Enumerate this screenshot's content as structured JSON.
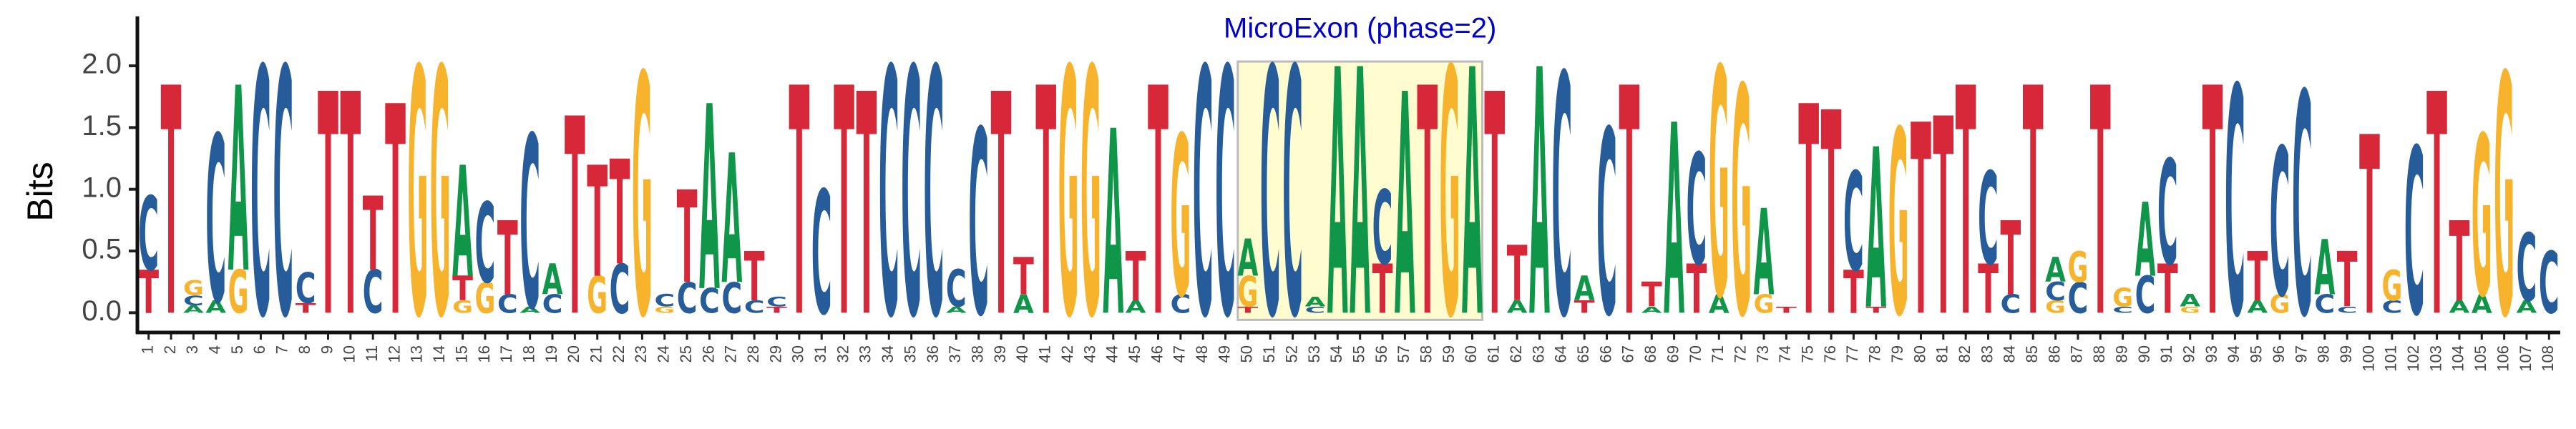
{
  "chart_data": {
    "type": "logo",
    "ylabel": "Bits",
    "ylim": [
      -0.16,
      2.4
    ],
    "yticks": [
      {
        "value": 0,
        "label": "0.0"
      },
      0.5,
      {
        "value": 1,
        "label": "1.0"
      },
      1.5,
      {
        "value": 2,
        "label": "2.0"
      }
    ],
    "xlim": [
      0.5,
      108.5
    ],
    "highlight": {
      "label": "MicroExon (phase=2)",
      "start": 50,
      "end": 60,
      "color": "#fffdd0",
      "label_color": "#0000cc"
    },
    "categories": [
      "1",
      "2",
      "3",
      "4",
      "5",
      "6",
      "7",
      "8",
      "9",
      "10",
      "11",
      "12",
      "13",
      "14",
      "15",
      "16",
      "17",
      "18",
      "19",
      "20",
      "21",
      "22",
      "23",
      "24",
      "25",
      "26",
      "27",
      "28",
      "29",
      "30",
      "31",
      "32",
      "33",
      "34",
      "35",
      "36",
      "37",
      "38",
      "39",
      "40",
      "41",
      "42",
      "43",
      "44",
      "45",
      "46",
      "47",
      "48",
      "49",
      "50",
      "51",
      "52",
      "53",
      "54",
      "55",
      "56",
      "57",
      "58",
      "59",
      "60",
      "61",
      "62",
      "63",
      "64",
      "65",
      "66",
      "67",
      "68",
      "69",
      "70",
      "71",
      "72",
      "73",
      "74",
      "75",
      "76",
      "77",
      "78",
      "79",
      "80",
      "81",
      "82",
      "83",
      "84",
      "85",
      "86",
      "87",
      "88",
      "89",
      "90",
      "91",
      "92",
      "93",
      "94",
      "95",
      "96",
      "97",
      "98",
      "99",
      "100",
      "101",
      "102",
      "103",
      "104",
      "105",
      "106",
      "107",
      "108"
    ],
    "series": [
      {
        "name": "A",
        "color": "#109648",
        "values": [
          0,
          0,
          0.06,
          0.1,
          1.5,
          0,
          0,
          0,
          0,
          0,
          0,
          0,
          0,
          0,
          0.9,
          0,
          0,
          0.05,
          0.25,
          0,
          0,
          0,
          0,
          0,
          0,
          1.5,
          1.05,
          0,
          0,
          0,
          0,
          0,
          0,
          0,
          0,
          0,
          0.05,
          0,
          0,
          0.15,
          0,
          0,
          0,
          1.5,
          0.1,
          0,
          0,
          0,
          0,
          0.3,
          0,
          0,
          0.08,
          2,
          2,
          0,
          1.8,
          0,
          0,
          2,
          0,
          0.1,
          2,
          0,
          0.2,
          0,
          0,
          0.05,
          1.55,
          0,
          0.15,
          0,
          0.7,
          0,
          0,
          0,
          0,
          1.3,
          0,
          0,
          0,
          0,
          0,
          0,
          0,
          0.2,
          0,
          0,
          0,
          0.6,
          0,
          0.1,
          0,
          0,
          0.1,
          0,
          0,
          0.45,
          0,
          0,
          0,
          0,
          0,
          0.1,
          0.15,
          0,
          0.1,
          0
        ]
      },
      {
        "name": "C",
        "color": "#255C99",
        "values": [
          0.6,
          0,
          0.08,
          1.35,
          0,
          2,
          2,
          0.25,
          0,
          0,
          0.35,
          0,
          0,
          0,
          0,
          0.65,
          0.15,
          1.4,
          0.15,
          0,
          0,
          0.4,
          0,
          0.1,
          0.25,
          0.2,
          0.25,
          0.1,
          0.08,
          0,
          1,
          0,
          0,
          2,
          2,
          2,
          0.3,
          1.5,
          0,
          0,
          0,
          0,
          0,
          0,
          0,
          0,
          0.15,
          2,
          2,
          0,
          2,
          2,
          0.05,
          0,
          0,
          0.6,
          0,
          0,
          0,
          0,
          0,
          0,
          0,
          1.95,
          0,
          1.5,
          0,
          0,
          0,
          0.9,
          0,
          0,
          0,
          0,
          0,
          0,
          0.8,
          0,
          0,
          0,
          0,
          0,
          0.75,
          0.15,
          0,
          0.15,
          0.25,
          0,
          0.05,
          0.3,
          0.85,
          0,
          0,
          1.85,
          0,
          1.2,
          1.8,
          0.15,
          0.05,
          0,
          0.1,
          1.35,
          0,
          0,
          0,
          0,
          0.55,
          0.5
        ]
      },
      {
        "name": "G",
        "color": "#F7B32B",
        "values": [
          0,
          0,
          0.12,
          0,
          0.35,
          0,
          0,
          0,
          0,
          0,
          0,
          0,
          2,
          2,
          0.1,
          0.25,
          0,
          0,
          0,
          0,
          0.3,
          0,
          1.95,
          0.05,
          0,
          0,
          0,
          0,
          0,
          0,
          0,
          0,
          0,
          0,
          0,
          0,
          0,
          0,
          0,
          0,
          0,
          2,
          2,
          0,
          0,
          0,
          1.3,
          0,
          0,
          0.25,
          0,
          0,
          0,
          0,
          0,
          0,
          0,
          0,
          2,
          0,
          0,
          0,
          0,
          0,
          0,
          0,
          0,
          0,
          0,
          0,
          1.85,
          1.85,
          0.15,
          0,
          0,
          0,
          0,
          0,
          1.5,
          0,
          0,
          0,
          0,
          0,
          0,
          0.1,
          0.25,
          0,
          0.15,
          0,
          0,
          0.05,
          0,
          0,
          0,
          0.15,
          0,
          0,
          0,
          0,
          0.25,
          0,
          0,
          0,
          1.3,
          1.95,
          0,
          0
        ]
      },
      {
        "name": "T",
        "color": "#D62839",
        "values": [
          0.35,
          1.85,
          0,
          0,
          0,
          0,
          0,
          0.08,
          1.8,
          1.8,
          0.6,
          1.7,
          0,
          0,
          0.2,
          0,
          0.6,
          0,
          0,
          1.6,
          0.9,
          0.85,
          0,
          0,
          0.75,
          0,
          0,
          0.4,
          0.05,
          1.85,
          0,
          1.85,
          1.8,
          0,
          0,
          0,
          0,
          0,
          1.8,
          0.3,
          1.85,
          0,
          0,
          0,
          0.4,
          1.85,
          0,
          0,
          0,
          0.05,
          0,
          0,
          0,
          0,
          0,
          0.4,
          0,
          1.85,
          0,
          0,
          1.8,
          0.45,
          0,
          0,
          0.1,
          0,
          1.85,
          0.2,
          0,
          0.4,
          0,
          0,
          0,
          0.05,
          1.7,
          1.65,
          0.35,
          0.05,
          0,
          1.55,
          1.6,
          1.85,
          0.4,
          0.6,
          1.85,
          0,
          0,
          1.85,
          0,
          0,
          0.4,
          0,
          1.85,
          0,
          0.4,
          0,
          0,
          0,
          0.45,
          1.45,
          0,
          0,
          1.8,
          0.65,
          0,
          0,
          0,
          0
        ]
      }
    ]
  }
}
